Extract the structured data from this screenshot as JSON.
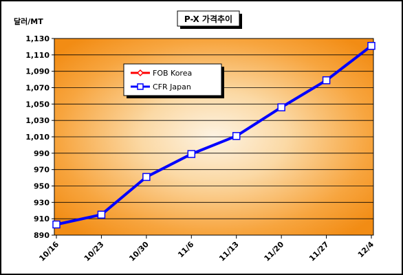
{
  "chart_data": {
    "type": "line",
    "title": "P-X 가격추이",
    "ylabel": "달러/MT",
    "xlabel": "",
    "categories": [
      "10/16",
      "10/23",
      "10/30",
      "11/6",
      "11/13",
      "11/20",
      "11/27",
      "12/4"
    ],
    "ylim": [
      890,
      1130
    ],
    "yticks": [
      "890",
      "910",
      "930",
      "950",
      "970",
      "990",
      "1,010",
      "1,030",
      "1,050",
      "1,070",
      "1,090",
      "1,110",
      "1,130"
    ],
    "grid": "horizontal",
    "legend_position": "upper-left",
    "series": [
      {
        "name": "FOB Korea",
        "values": [
          null,
          null,
          null,
          null,
          null,
          null,
          null,
          null
        ],
        "color": "#ff0000",
        "marker": "diamond"
      },
      {
        "name": "CFR Japan",
        "values": [
          903,
          915,
          961,
          989,
          1011,
          1046,
          1079,
          1121
        ],
        "color": "#0000ff",
        "marker": "square"
      }
    ]
  }
}
